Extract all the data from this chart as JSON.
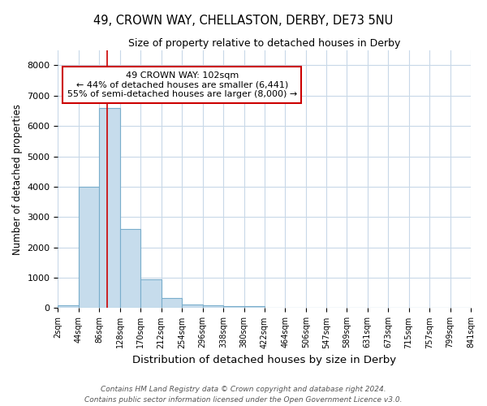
{
  "title_line1": "49, CROWN WAY, CHELLASTON, DERBY, DE73 5NU",
  "title_line2": "Size of property relative to detached houses in Derby",
  "xlabel": "Distribution of detached houses by size in Derby",
  "ylabel": "Number of detached properties",
  "bin_edges": [
    2,
    44,
    86,
    128,
    170,
    212,
    254,
    296,
    338,
    380,
    422,
    464,
    506,
    547,
    589,
    631,
    673,
    715,
    757,
    799,
    841
  ],
  "bar_heights": [
    80,
    4000,
    6600,
    2600,
    950,
    320,
    130,
    100,
    60,
    55,
    0,
    0,
    0,
    0,
    0,
    0,
    0,
    0,
    0,
    0
  ],
  "bar_color": "#c6dcec",
  "bar_edgecolor": "#7aaecc",
  "property_size": 102,
  "property_line_color": "#cc0000",
  "annotation_text": "49 CROWN WAY: 102sqm\n← 44% of detached houses are smaller (6,441)\n55% of semi-detached houses are larger (8,000) →",
  "annotation_box_edgecolor": "#cc0000",
  "ylim": [
    0,
    8500
  ],
  "yticks": [
    0,
    1000,
    2000,
    3000,
    4000,
    5000,
    6000,
    7000,
    8000
  ],
  "background_color": "#ffffff",
  "grid_color": "#c8d8e8",
  "footnote1": "Contains HM Land Registry data © Crown copyright and database right 2024.",
  "footnote2": "Contains public sector information licensed under the Open Government Licence v3.0."
}
